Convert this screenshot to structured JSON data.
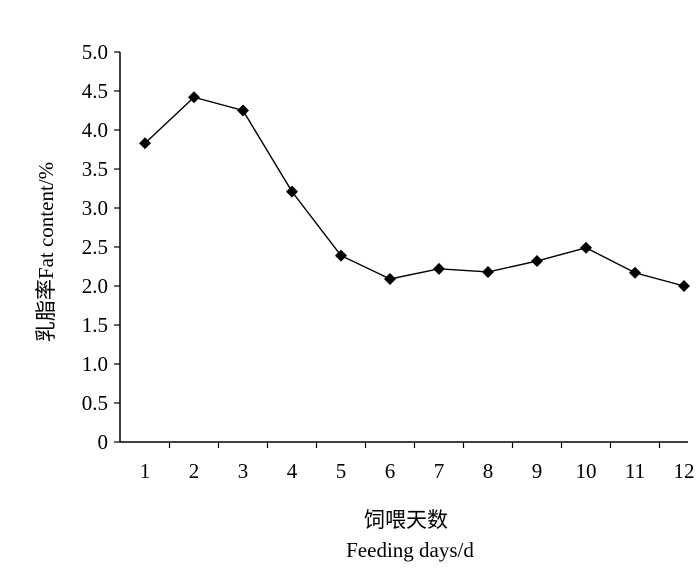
{
  "chart_data": {
    "type": "line",
    "x": [
      1,
      2,
      3,
      4,
      5,
      6,
      7,
      8,
      9,
      10,
      11,
      12
    ],
    "categories": [
      "1",
      "2",
      "3",
      "4",
      "5",
      "6",
      "7",
      "8",
      "9",
      "10",
      "11",
      "12"
    ],
    "series": [
      {
        "values": [
          3.83,
          4.42,
          4.25,
          3.21,
          2.39,
          2.09,
          2.22,
          2.18,
          2.32,
          2.49,
          2.17,
          2.0
        ],
        "marker": "diamond",
        "color": "#000000"
      }
    ],
    "ylim": [
      0,
      5.0
    ],
    "yticks": [
      "0",
      "0.5",
      "1.0",
      "1.5",
      "2.0",
      "2.5",
      "3.0",
      "3.5",
      "4.0",
      "4.5",
      "5.0"
    ],
    "xlabel": "Feeding days/d",
    "xlabel_cn": "饲喂天数",
    "ylabel": "乳脂率Fat content/%",
    "grid": false,
    "legend": "none"
  }
}
